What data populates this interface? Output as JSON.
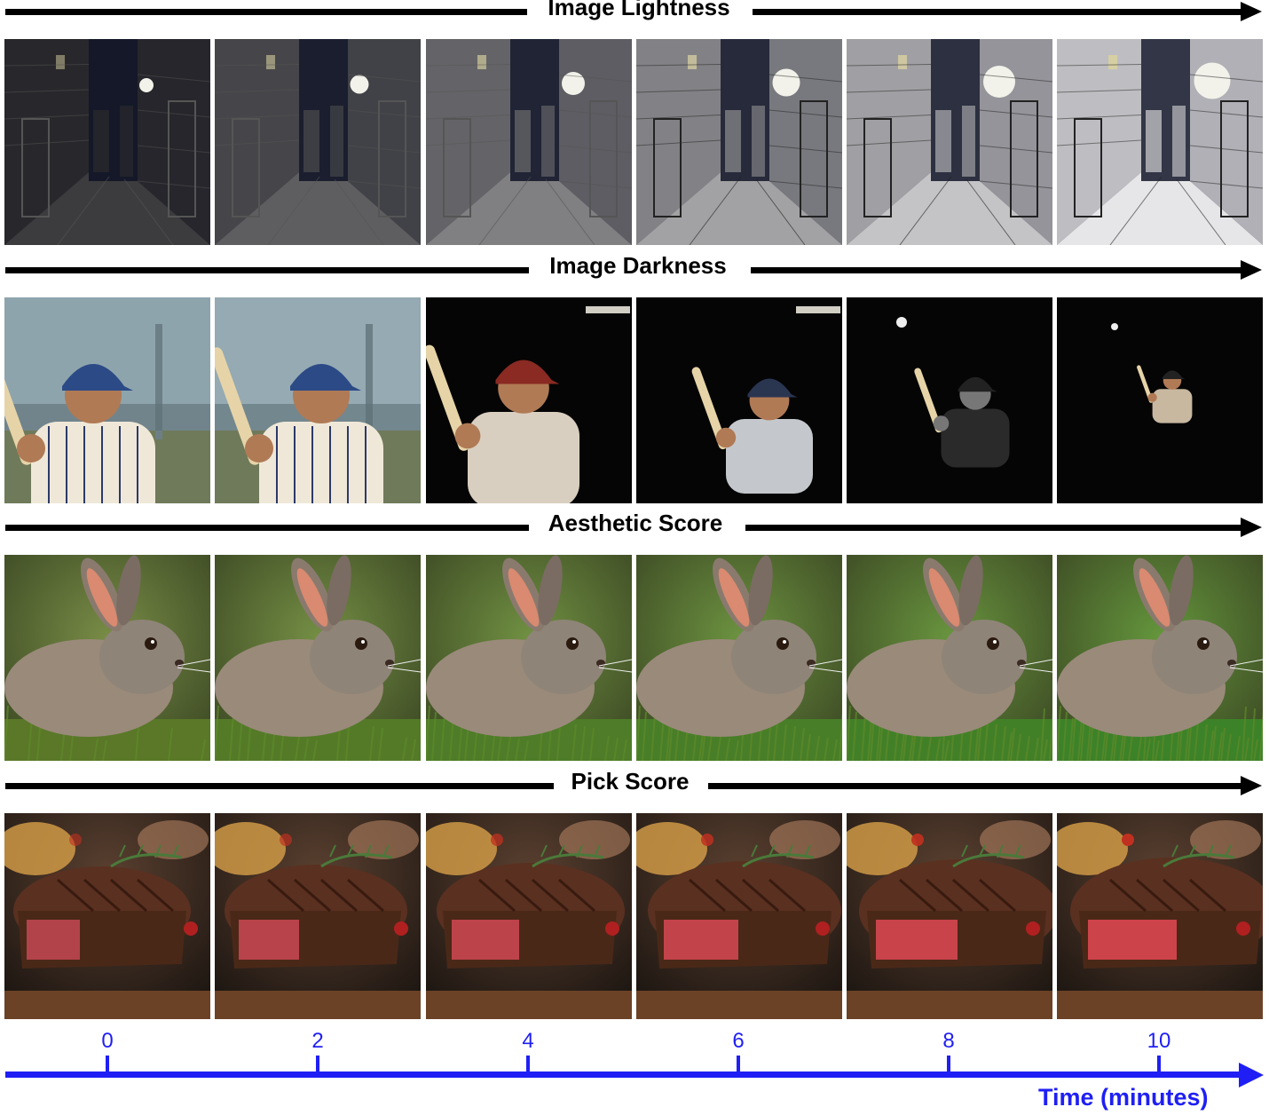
{
  "rows": [
    {
      "title": "Image Lightness",
      "subject": "alley-night"
    },
    {
      "title": "Image Darkness",
      "subject": "baseball-player"
    },
    {
      "title": "Aesthetic Score",
      "subject": "rabbit"
    },
    {
      "title": "Pick Score",
      "subject": "steak"
    }
  ],
  "timeline": {
    "ticks": [
      "0",
      "2",
      "4",
      "6",
      "8",
      "10"
    ],
    "title": "Time (minutes)",
    "color": "#1f1ff5"
  }
}
